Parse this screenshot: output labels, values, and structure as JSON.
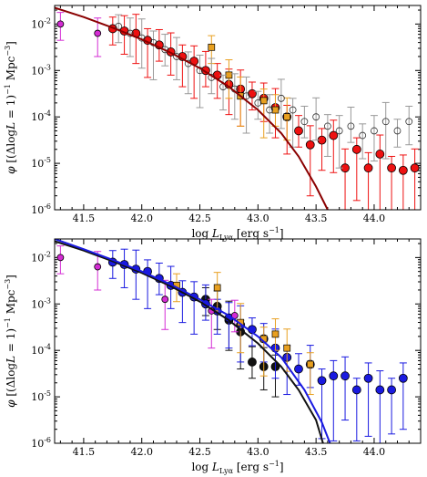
{
  "chart_data": [
    {
      "type": "scatter",
      "xlabel": "log L_Lyα [erg s^-1]",
      "ylabel": "φ [(ΔlogL = 1)^-1 Mpc^-3]",
      "xlim": [
        41.25,
        44.4
      ],
      "ylim_log10": [
        -6,
        -1.6
      ],
      "x_ticks": [
        "41.5",
        "42.0",
        "42.5",
        "43.0",
        "43.5",
        "44.0"
      ],
      "y_ticks": [
        "10^-6",
        "10^-5",
        "10^-4",
        "10^-3",
        "10^-2"
      ],
      "series": [
        {
          "color": "#ee1111",
          "marker": "circle",
          "x": [
            41.75,
            41.85,
            41.95,
            42.05,
            42.15,
            42.25,
            42.35,
            42.45,
            42.55,
            42.65,
            42.75,
            42.85,
            42.95,
            43.05,
            43.15,
            43.25,
            43.35,
            43.45,
            43.55,
            43.65,
            43.75,
            43.85,
            43.95,
            44.05,
            44.15,
            44.25,
            44.35
          ],
          "log_y": [
            -2.1,
            -2.15,
            -2.2,
            -2.35,
            -2.45,
            -2.6,
            -2.7,
            -2.8,
            -3.0,
            -3.1,
            -3.3,
            -3.4,
            -3.5,
            -3.6,
            -3.8,
            -4.0,
            -4.3,
            -4.6,
            -4.5,
            -4.4,
            -5.1,
            -4.7,
            -5.1,
            -4.8,
            -5.1,
            -5.15,
            -5.1
          ]
        },
        {
          "color": "#d42cd4",
          "marker": "circle",
          "x": [
            41.3,
            41.62
          ],
          "log_y": [
            -2.0,
            -2.2
          ]
        },
        {
          "color": "#e8a020",
          "marker": "square",
          "x": [
            42.6,
            42.75,
            42.85,
            43.05,
            43.15,
            43.25
          ],
          "log_y": [
            -2.5,
            -3.1,
            -3.55,
            -3.65,
            -3.85,
            -4.0
          ]
        },
        {
          "color": "#999999",
          "marker": "open",
          "x": [
            41.8,
            41.9,
            42.0,
            42.1,
            42.2,
            42.3,
            42.4,
            42.5,
            42.6,
            42.7,
            42.8,
            42.9,
            43.0,
            43.1,
            43.2,
            43.3,
            43.4,
            43.5,
            43.6,
            43.7,
            43.8,
            43.9,
            44.0,
            44.1,
            44.2,
            44.3
          ],
          "log_y": [
            -2.05,
            -2.2,
            -2.3,
            -2.4,
            -2.55,
            -2.7,
            -2.85,
            -3.0,
            -3.15,
            -3.35,
            -3.4,
            -3.55,
            -3.7,
            -3.85,
            -3.6,
            -3.85,
            -4.1,
            -4.0,
            -4.2,
            -4.3,
            -4.2,
            -4.4,
            -4.3,
            -4.1,
            -4.3,
            -4.1
          ]
        }
      ],
      "curves": [
        {
          "color": "#8a0000",
          "x": [
            41.25,
            41.5,
            41.75,
            42.0,
            42.25,
            42.5,
            42.75,
            43.0,
            43.2,
            43.35,
            43.5,
            43.6
          ],
          "log_y": [
            -1.65,
            -1.85,
            -2.08,
            -2.33,
            -2.62,
            -2.95,
            -3.35,
            -3.85,
            -4.35,
            -4.85,
            -5.5,
            -6.0
          ]
        }
      ]
    },
    {
      "type": "scatter",
      "xlabel": "log L_Lyα [erg s^-1]",
      "ylabel": "φ [(ΔlogL = 1)^-1 Mpc^-3]",
      "xlim": [
        41.25,
        44.4
      ],
      "ylim_log10": [
        -6,
        -1.6
      ],
      "x_ticks": [
        "41.5",
        "42.0",
        "42.5",
        "43.0",
        "43.5",
        "44.0"
      ],
      "y_ticks": [
        "10^-6",
        "10^-5",
        "10^-4",
        "10^-3",
        "10^-2"
      ],
      "series": [
        {
          "color": "#111111",
          "marker": "circle",
          "x": [
            42.55,
            42.65,
            42.75,
            42.85,
            42.95,
            43.05,
            43.15
          ],
          "log_y": [
            -2.9,
            -3.05,
            -3.35,
            -3.6,
            -4.25,
            -4.35,
            -4.35
          ]
        },
        {
          "color": "#1a1ae0",
          "marker": "circle",
          "x": [
            41.75,
            41.85,
            41.95,
            42.05,
            42.15,
            42.25,
            42.35,
            42.45,
            42.55,
            42.65,
            42.75,
            42.85,
            42.95,
            43.05,
            43.15,
            43.25,
            43.35,
            43.45,
            43.55,
            43.65,
            43.75,
            43.85,
            43.95,
            44.05,
            44.15,
            44.25
          ],
          "log_y": [
            -2.1,
            -2.15,
            -2.25,
            -2.3,
            -2.45,
            -2.6,
            -2.75,
            -2.85,
            -3.0,
            -3.15,
            -3.3,
            -3.45,
            -3.55,
            -3.75,
            -3.95,
            -4.15,
            -4.4,
            -4.3,
            -4.65,
            -4.55,
            -4.55,
            -4.85,
            -4.6,
            -4.85,
            -4.85,
            -4.6
          ]
        },
        {
          "color": "#d42cd4",
          "marker": "circle",
          "x": [
            41.3,
            41.62,
            42.2,
            42.6,
            42.8
          ],
          "log_y": [
            -2.0,
            -2.2,
            -2.9,
            -3.15,
            -3.25
          ]
        },
        {
          "color": "#e8a020",
          "marker": "square",
          "x": [
            42.3,
            42.65,
            42.85,
            43.05,
            43.15,
            43.25,
            43.45
          ],
          "log_y": [
            -2.6,
            -2.65,
            -3.4,
            -3.75,
            -3.65,
            -3.95,
            -4.3
          ]
        }
      ],
      "curves": [
        {
          "color": "#111111",
          "x": [
            41.25,
            41.5,
            41.75,
            42.0,
            42.25,
            42.5,
            42.75,
            43.0,
            43.2,
            43.35,
            43.5,
            43.56
          ],
          "log_y": [
            -1.65,
            -1.85,
            -2.08,
            -2.33,
            -2.62,
            -2.95,
            -3.35,
            -3.85,
            -4.35,
            -4.85,
            -5.5,
            -6.0
          ]
        },
        {
          "color": "#1a1ae0",
          "x": [
            41.25,
            41.5,
            41.75,
            42.0,
            42.25,
            42.5,
            42.75,
            43.0,
            43.2,
            43.4,
            43.55,
            43.62
          ],
          "log_y": [
            -1.6,
            -1.82,
            -2.05,
            -2.3,
            -2.58,
            -2.9,
            -3.25,
            -3.7,
            -4.15,
            -4.85,
            -5.55,
            -6.0
          ]
        }
      ]
    }
  ]
}
